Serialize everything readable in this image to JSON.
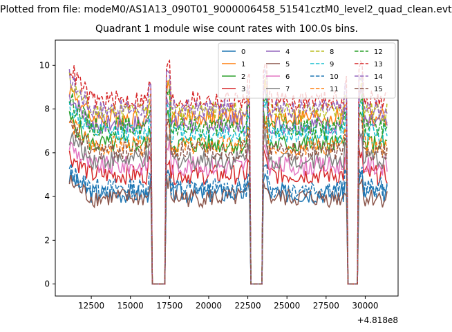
{
  "figure": {
    "title": "Plotted from file: modeM0/AS1A13_090T01_9000006458_51541cztM0_level2_quad_clean.evt"
  },
  "chart_data": {
    "type": "line",
    "title": "Quadrant 1 module wise count rates with 100.0s bins.",
    "xlabel": "",
    "ylabel": "",
    "x_offset_label": "+4.818e8",
    "xlim": [
      10200,
      32100
    ],
    "ylim": [
      -0.55,
      11.15
    ],
    "xticks": [
      12500,
      15000,
      17500,
      20000,
      22500,
      25000,
      27500,
      30000
    ],
    "yticks": [
      0,
      2,
      4,
      6,
      8,
      10
    ],
    "grid": false,
    "legend": {
      "placement": "top-right",
      "columns": 4
    },
    "x_range": [
      11100,
      31400
    ],
    "gaps": [
      [
        16300,
        17300
      ],
      [
        22600,
        23500
      ],
      [
        28800,
        29600
      ]
    ],
    "series": [
      {
        "name": "0",
        "color": "#1f77b4",
        "style": "solid",
        "level": 4.15
      },
      {
        "name": "1",
        "color": "#ff7f0e",
        "style": "solid",
        "level": 7.6
      },
      {
        "name": "2",
        "color": "#2ca02c",
        "style": "solid",
        "level": 6.4
      },
      {
        "name": "3",
        "color": "#d62728",
        "style": "solid",
        "level": 5.0
      },
      {
        "name": "4",
        "color": "#9467bd",
        "style": "solid",
        "level": 7.3
      },
      {
        "name": "5",
        "color": "#8c564b",
        "style": "solid",
        "level": 3.95
      },
      {
        "name": "6",
        "color": "#e377c2",
        "style": "solid",
        "level": 5.4
      },
      {
        "name": "7",
        "color": "#7f7f7f",
        "style": "solid",
        "level": 5.7
      },
      {
        "name": "8",
        "color": "#bcbd22",
        "style": "dashed",
        "level": 7.9
      },
      {
        "name": "9",
        "color": "#17becf",
        "style": "dashed",
        "level": 6.9
      },
      {
        "name": "10",
        "color": "#1f77b4",
        "style": "dashed",
        "level": 4.4
      },
      {
        "name": "11",
        "color": "#ff7f0e",
        "style": "dashed",
        "level": 6.3
      },
      {
        "name": "12",
        "color": "#2ca02c",
        "style": "dashed",
        "level": 7.2
      },
      {
        "name": "13",
        "color": "#d62728",
        "style": "dashed",
        "level": 8.4
      },
      {
        "name": "14",
        "color": "#9467bd",
        "style": "dashed",
        "level": 8.0
      },
      {
        "name": "15",
        "color": "#8c564b",
        "style": "dashed",
        "level": 6.1
      }
    ]
  }
}
